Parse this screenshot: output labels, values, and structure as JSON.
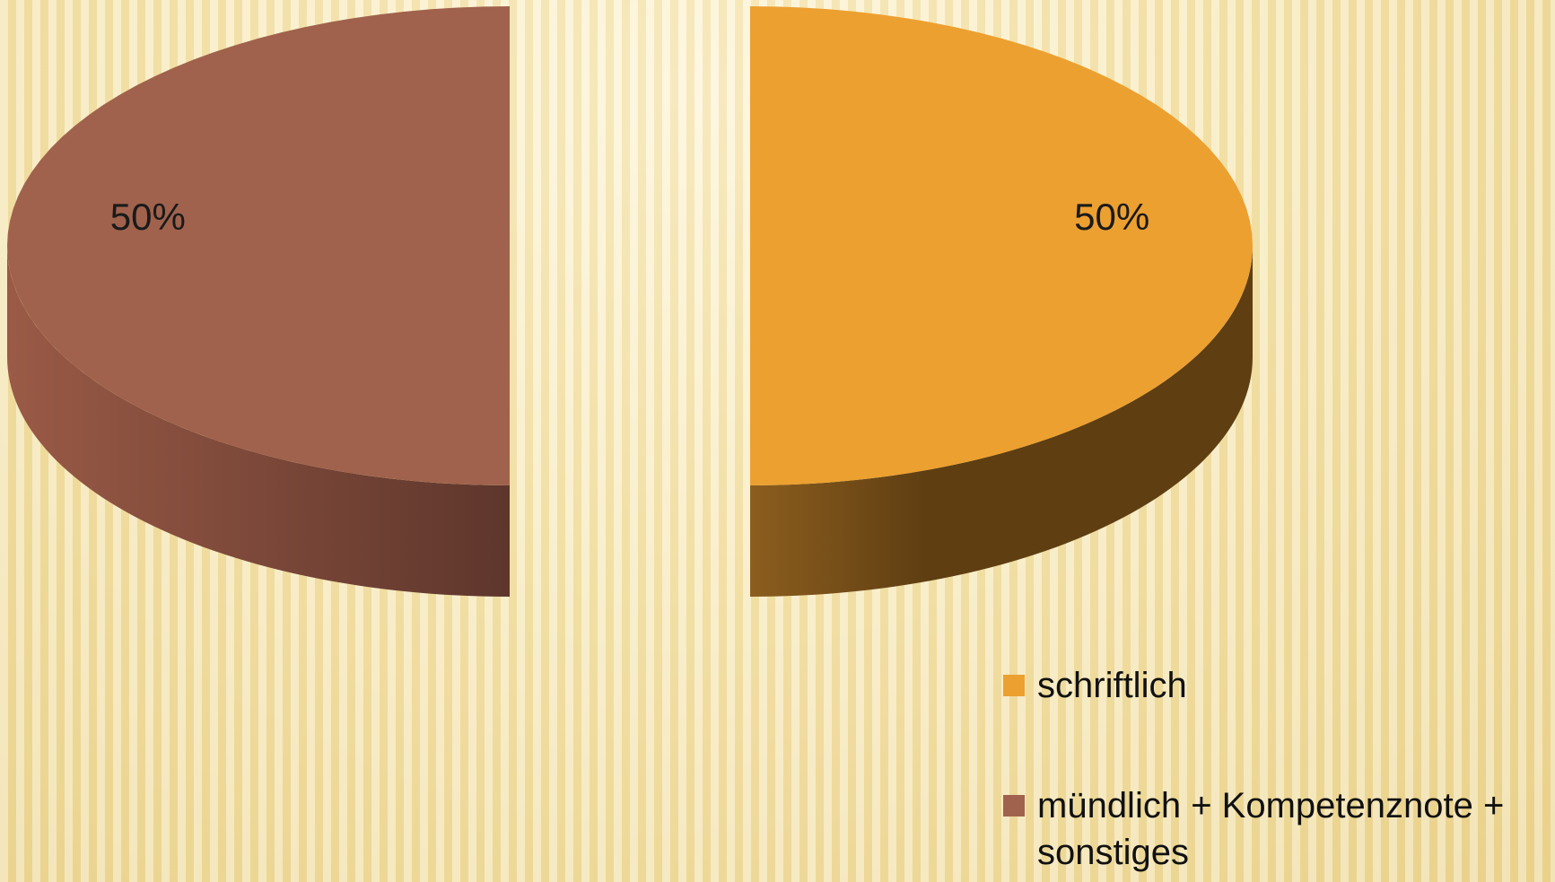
{
  "chart_data": {
    "type": "pie",
    "categories": [
      "schriftlich",
      "mündlich + Kompetenznote + sonstiges"
    ],
    "values": [
      50,
      50
    ],
    "value_labels": [
      "50%",
      "50%"
    ],
    "colors": [
      "#eca030",
      "#a0624c"
    ],
    "legend": "bottom-right"
  }
}
